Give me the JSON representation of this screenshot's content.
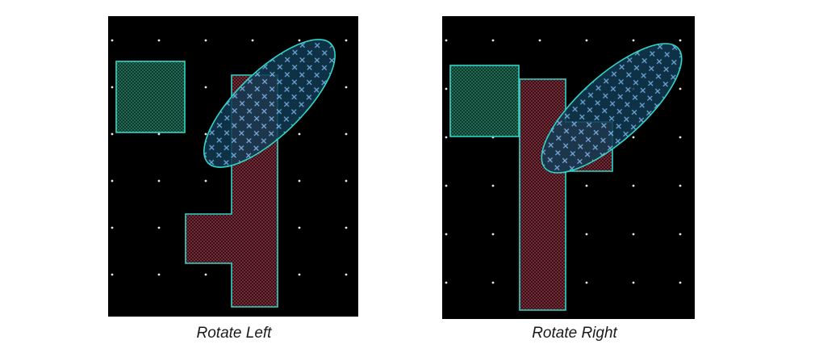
{
  "figure": {
    "captions": {
      "left": "Rotate Left",
      "right": "Rotate Right"
    },
    "colors": {
      "background": "#000000",
      "outline": "#2fd6c8",
      "green_fill": "#0f3a2e",
      "red_fill": "#3a0f16",
      "blue_fill": "#123a52",
      "hatch_cross": "#7fc4ff",
      "grid_dot": "#e8e8e8",
      "caption_text": "#1a1a1a"
    },
    "patterns": {
      "square": "fine-dot",
      "bar": "fine-dot-red",
      "ellipse": "cross-hatch"
    }
  }
}
